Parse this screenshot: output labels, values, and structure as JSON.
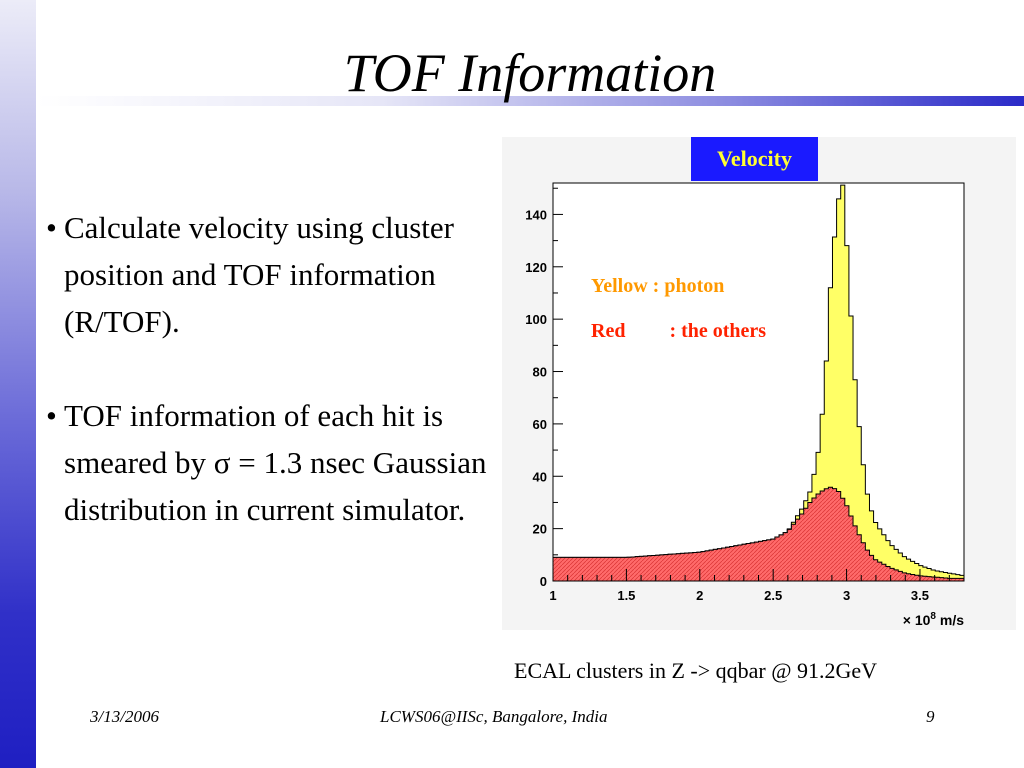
{
  "slide": {
    "title": "TOF Information",
    "bullets": [
      "Calculate velocity using cluster position and TOF information (R/TOF).",
      "TOF information of each hit is smeared by σ = 1.3 nsec Gaussian distribution in current simulator."
    ],
    "bullet_symbol": "•",
    "caption": "ECAL clusters in Z -> qqbar @ 91.2GeV",
    "footer": {
      "date": "3/13/2006",
      "venue": "LCWS06@IISc, Bangalore, India",
      "page": "9"
    }
  },
  "chart_data": {
    "type": "histogram",
    "title": "Velocity",
    "xlabel_prefix": "× 10",
    "xlabel_exponent": "8",
    "xlabel_unit": " m/s",
    "xlim": [
      1,
      3.8
    ],
    "ylim": [
      0,
      152
    ],
    "xticks": [
      1,
      1.5,
      2,
      2.5,
      3,
      3.5
    ],
    "xtick_labels": [
      "1",
      "1.5",
      "2",
      "2.5",
      "3",
      "3.5"
    ],
    "yticks": [
      0,
      20,
      40,
      60,
      80,
      100,
      120,
      140
    ],
    "ytick_labels": [
      "0",
      "20",
      "40",
      "60",
      "80",
      "100",
      "120",
      "140"
    ],
    "grid": false,
    "legend": [
      {
        "label": "Yellow : photon",
        "color": "#ff9900"
      },
      {
        "label_left": "Red",
        "label_right": ": the others",
        "color": "#ff2200"
      }
    ],
    "series": [
      {
        "name": "photon",
        "fill_color": "#ffff66",
        "curve_points": [
          {
            "x": 1.0,
            "y": 9
          },
          {
            "x": 1.5,
            "y": 9
          },
          {
            "x": 2.0,
            "y": 11
          },
          {
            "x": 2.3,
            "y": 14
          },
          {
            "x": 2.5,
            "y": 16
          },
          {
            "x": 2.6,
            "y": 19
          },
          {
            "x": 2.7,
            "y": 28
          },
          {
            "x": 2.75,
            "y": 34
          },
          {
            "x": 2.8,
            "y": 46
          },
          {
            "x": 2.85,
            "y": 72
          },
          {
            "x": 2.9,
            "y": 122
          },
          {
            "x": 2.95,
            "y": 148
          },
          {
            "x": 2.98,
            "y": 152
          },
          {
            "x": 3.0,
            "y": 130
          },
          {
            "x": 3.05,
            "y": 82
          },
          {
            "x": 3.1,
            "y": 50
          },
          {
            "x": 3.15,
            "y": 30
          },
          {
            "x": 3.2,
            "y": 22
          },
          {
            "x": 3.3,
            "y": 14
          },
          {
            "x": 3.4,
            "y": 9
          },
          {
            "x": 3.5,
            "y": 6
          },
          {
            "x": 3.6,
            "y": 4
          },
          {
            "x": 3.7,
            "y": 3
          },
          {
            "x": 3.8,
            "y": 2
          }
        ]
      },
      {
        "name": "others",
        "fill_color": "#ff6a6a",
        "curve_points": [
          {
            "x": 1.0,
            "y": 9
          },
          {
            "x": 1.5,
            "y": 9
          },
          {
            "x": 2.0,
            "y": 11
          },
          {
            "x": 2.3,
            "y": 14
          },
          {
            "x": 2.5,
            "y": 16
          },
          {
            "x": 2.6,
            "y": 19
          },
          {
            "x": 2.7,
            "y": 26
          },
          {
            "x": 2.75,
            "y": 30
          },
          {
            "x": 2.8,
            "y": 33
          },
          {
            "x": 2.85,
            "y": 35
          },
          {
            "x": 2.9,
            "y": 36
          },
          {
            "x": 2.95,
            "y": 34
          },
          {
            "x": 3.0,
            "y": 29
          },
          {
            "x": 3.05,
            "y": 22
          },
          {
            "x": 3.1,
            "y": 16
          },
          {
            "x": 3.15,
            "y": 11
          },
          {
            "x": 3.2,
            "y": 8
          },
          {
            "x": 3.3,
            "y": 5
          },
          {
            "x": 3.4,
            "y": 3
          },
          {
            "x": 3.5,
            "y": 2
          },
          {
            "x": 3.6,
            "y": 1.5
          },
          {
            "x": 3.7,
            "y": 1
          },
          {
            "x": 3.8,
            "y": 1
          }
        ]
      }
    ]
  }
}
